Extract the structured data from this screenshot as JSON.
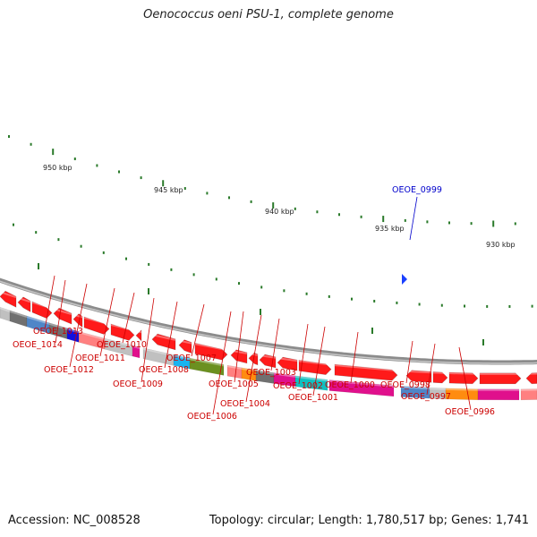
{
  "title": "Oenococcus oeni PSU-1, complete genome",
  "accession_text": "Accession: NC_008528",
  "topology_text": "Topology: circular; Length: 1,780,517 bp; Genes: 1,741",
  "colors": {
    "axis_tick": "#2a7a2a",
    "backbone": "#8c8c8c",
    "forward_gene": "#ff1a1a",
    "label_red": "#cc0000",
    "label_blue": "#0000cc"
  },
  "scale_labels": [
    "950 kbp",
    "945 kbp",
    "940 kbp",
    "935 kbp",
    "930 kbp"
  ],
  "gene_labels": [
    {
      "text": "OEOE_0999",
      "color": "blue"
    },
    {
      "text": "OEOE_1013",
      "color": "red"
    },
    {
      "text": "OEOE_1014",
      "color": "red"
    },
    {
      "text": "OEOE_1012",
      "color": "red"
    },
    {
      "text": "OEOE_1011",
      "color": "red"
    },
    {
      "text": "OEOE_1010",
      "color": "red"
    },
    {
      "text": "OEOE_1009",
      "color": "red"
    },
    {
      "text": "OEOE_1008",
      "color": "red"
    },
    {
      "text": "OEOE_1007",
      "color": "red"
    },
    {
      "text": "OEOE_1006",
      "color": "red"
    },
    {
      "text": "OEOE_1005",
      "color": "red"
    },
    {
      "text": "OEOE_1004",
      "color": "red"
    },
    {
      "text": "OEOE_1003",
      "color": "red"
    },
    {
      "text": "OEOE_1002",
      "color": "red"
    },
    {
      "text": "OEOE_1001",
      "color": "red"
    },
    {
      "text": "OEOE_1000",
      "color": "red"
    },
    {
      "text": "OEOE_0998",
      "color": "red"
    },
    {
      "text": "OEOE_0997",
      "color": "red"
    },
    {
      "text": "OEOE_0996",
      "color": "red"
    }
  ]
}
